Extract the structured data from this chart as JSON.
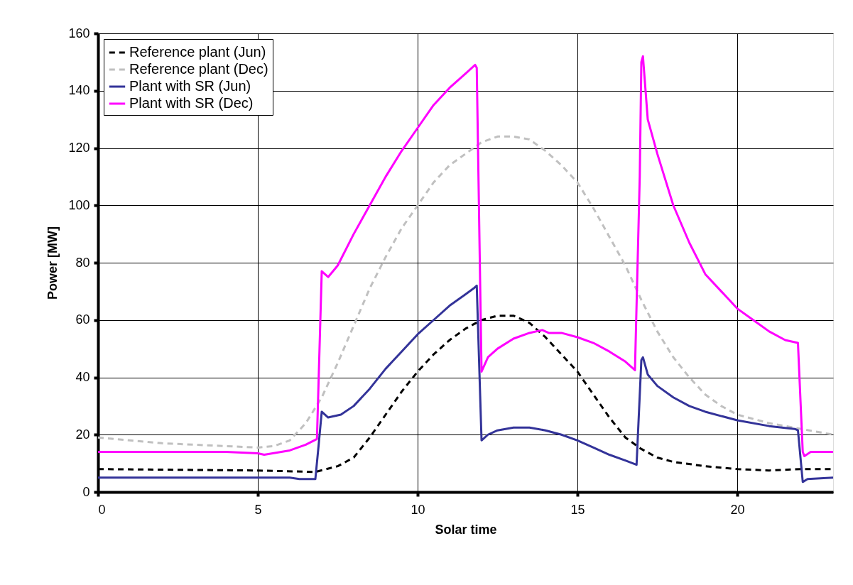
{
  "chart_data": {
    "type": "line",
    "xlabel": "Solar time",
    "ylabel": "Power [MW]",
    "xlim": [
      0,
      23
    ],
    "xticks": [
      0,
      5,
      10,
      15,
      20
    ],
    "ylim": [
      0,
      160
    ],
    "yticks": [
      0,
      20,
      40,
      60,
      80,
      100,
      120,
      140,
      160
    ],
    "grid": true,
    "legend": "top left",
    "series": [
      {
        "name": "Reference plant (Jun)",
        "color": "#000000",
        "line_style": "dashed",
        "x": [
          0,
          5,
          6.8,
          7.5,
          8,
          8.5,
          9,
          9.5,
          10,
          10.5,
          11,
          11.5,
          12,
          12.5,
          13,
          13.5,
          14,
          14.5,
          15,
          15.5,
          16,
          16.5,
          17,
          17.5,
          18,
          19,
          20,
          21,
          22,
          23
        ],
        "values": [
          8,
          7.5,
          7,
          9,
          12,
          19,
          27,
          35,
          42,
          48,
          53,
          57,
          60,
          61.5,
          61.5,
          59,
          54,
          48,
          42,
          34,
          26,
          19,
          15,
          12,
          10.5,
          9,
          8,
          7.5,
          8,
          8
        ]
      },
      {
        "name": "Reference plant (Dec)",
        "color": "#c0c0c0",
        "line_style": "dashed",
        "x": [
          0,
          2,
          4,
          5,
          5.5,
          6,
          6.5,
          7,
          7.5,
          8,
          8.5,
          9,
          9.5,
          10,
          10.5,
          11,
          11.5,
          12,
          12.5,
          13,
          13.5,
          14,
          14.5,
          15,
          15.5,
          16,
          16.5,
          17,
          17.5,
          18,
          18.5,
          19,
          19.5,
          20,
          21,
          22,
          23
        ],
        "values": [
          19,
          17,
          16,
          15.5,
          16,
          18,
          24,
          33,
          45,
          58,
          71,
          82,
          92,
          100,
          108,
          114,
          118,
          122,
          124,
          124,
          123,
          119,
          114,
          108,
          99,
          89,
          79,
          67,
          56,
          47,
          40,
          34,
          30,
          27,
          24,
          22,
          20
        ]
      },
      {
        "name": "Plant with SR (Jun)",
        "color": "#333399",
        "line_style": "solid",
        "x": [
          0,
          6,
          6.3,
          6.8,
          6.9,
          7.0,
          7.2,
          7.6,
          8,
          8.5,
          9,
          9.5,
          10,
          10.5,
          11,
          11.5,
          11.75,
          11.85,
          12.0,
          12.2,
          12.5,
          13,
          13.5,
          14,
          14.5,
          15,
          15.5,
          16,
          16.5,
          16.85,
          17.0,
          17.05,
          17.2,
          17.5,
          18,
          18.5,
          19,
          20,
          21,
          21.8,
          21.9,
          22.05,
          22.2,
          23
        ],
        "values": [
          5,
          5,
          4.5,
          4.5,
          16,
          28,
          26,
          27,
          30,
          36,
          43,
          49,
          55,
          60,
          65,
          69,
          71,
          72,
          18,
          20,
          21.5,
          22.5,
          22.5,
          21.5,
          20,
          18,
          15.5,
          13,
          11,
          9.5,
          46,
          47,
          41,
          37,
          33,
          30,
          28,
          25,
          23,
          22,
          21.5,
          3.5,
          4.5,
          5
        ]
      },
      {
        "name": "Plant with SR (Dec)",
        "color": "#ff00ff",
        "line_style": "solid",
        "x": [
          0,
          2,
          4,
          5,
          5.2,
          6,
          6.5,
          6.85,
          7.0,
          7.2,
          7.5,
          8,
          8.5,
          9,
          9.5,
          10,
          10.5,
          11,
          11.5,
          11.8,
          11.85,
          12.0,
          12.2,
          12.5,
          13,
          13.5,
          13.9,
          14.1,
          14.5,
          15,
          15.5,
          16,
          16.5,
          16.8,
          16.95,
          17.0,
          17.05,
          17.2,
          17.5,
          18,
          18.5,
          19,
          19.5,
          20,
          20.5,
          21,
          21.5,
          21.9,
          22.05,
          22.1,
          22.3,
          23
        ],
        "values": [
          14,
          14,
          14,
          13.5,
          13,
          14.5,
          16.5,
          18.5,
          77,
          75,
          79,
          90,
          100,
          110,
          119,
          127,
          135,
          141,
          146,
          149,
          148,
          42,
          47,
          50,
          53.5,
          55.5,
          56.5,
          55.5,
          55.5,
          54,
          52,
          49,
          45.5,
          42.5,
          110,
          150,
          152,
          130,
          118,
          100,
          87,
          76,
          70,
          64,
          60,
          56,
          53,
          52,
          14,
          12.5,
          14,
          14
        ]
      }
    ]
  }
}
